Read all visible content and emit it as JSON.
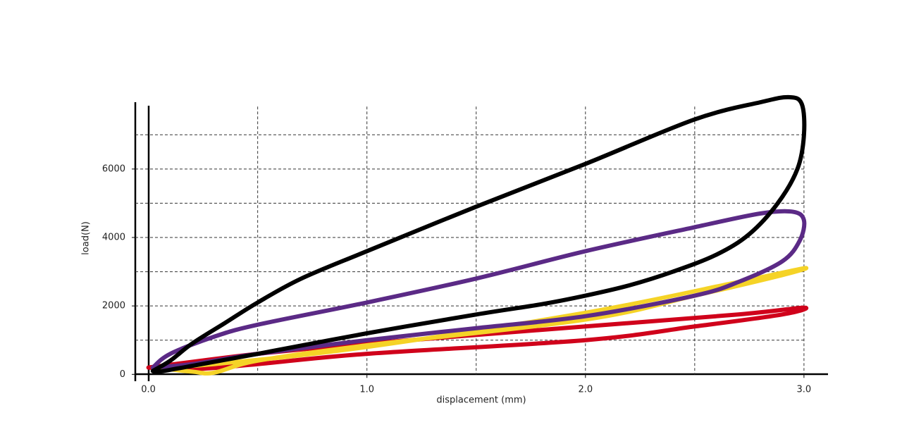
{
  "chart_data": {
    "type": "line",
    "x_label": "displacement (mm)",
    "y_label": "load(N)",
    "xlim": [
      -0.06,
      3.11
    ],
    "ylim": [
      -200,
      8200
    ],
    "xticks": [
      {
        "value": 0,
        "label": "0.0"
      },
      {
        "value": 1,
        "label": "1.0"
      },
      {
        "value": 2,
        "label": "2.0"
      },
      {
        "value": 3,
        "label": "3.0"
      }
    ],
    "yticks": [
      0,
      2000,
      4000,
      6000
    ],
    "xgrid": [
      0.5,
      1,
      1.5,
      2,
      2.5,
      3
    ],
    "ygrid": [
      1000,
      2000,
      3000,
      4000,
      5000,
      6000,
      7000
    ],
    "series": [
      {
        "color": "#d0021b",
        "x": [
          0.0,
          0.5,
          1.0,
          2.0,
          2.7,
          3.0,
          2.9,
          2.5,
          2.0,
          1.0,
          0.5,
          0.2,
          0.0
        ],
        "values": [
          200,
          600,
          900,
          1400,
          1750,
          1950,
          1750,
          1400,
          1000,
          600,
          300,
          150,
          200
        ]
      },
      {
        "color": "#f5d327",
        "x": [
          0.02,
          0.3,
          1.0,
          2.0,
          2.7,
          3.0,
          2.9,
          2.5,
          2.0,
          1.0,
          0.5,
          0.3,
          0.2,
          0.02
        ],
        "values": [
          200,
          300,
          800,
          1800,
          2700,
          3100,
          2900,
          2300,
          1600,
          850,
          400,
          50,
          80,
          200
        ]
      },
      {
        "color": "#5b2a86",
        "x": [
          0.02,
          0.1,
          0.3,
          0.5,
          1.0,
          1.5,
          2.0,
          2.5,
          2.8,
          2.95,
          3.0,
          2.98,
          2.9,
          2.7,
          2.5,
          2.0,
          1.5,
          1.0,
          0.5,
          0.2,
          0.02
        ],
        "values": [
          200,
          600,
          1100,
          1450,
          2100,
          2800,
          3600,
          4300,
          4700,
          4750,
          4500,
          3900,
          3300,
          2700,
          2300,
          1700,
          1350,
          1000,
          600,
          300,
          200
        ]
      },
      {
        "color": "#000000",
        "x": [
          0.02,
          0.1,
          0.2,
          0.35,
          0.5,
          0.7,
          1.0,
          1.5,
          2.0,
          2.5,
          2.8,
          2.93,
          2.99,
          3.0,
          2.97,
          2.88,
          2.75,
          2.6,
          2.4,
          2.2,
          2.0,
          1.8,
          1.5,
          1.0,
          0.5,
          0.2,
          0.05,
          0.02
        ],
        "values": [
          100,
          400,
          900,
          1500,
          2100,
          2800,
          3600,
          4900,
          6150,
          7450,
          7950,
          8100,
          7900,
          7000,
          6000,
          5000,
          4100,
          3500,
          3000,
          2600,
          2300,
          2050,
          1750,
          1200,
          600,
          250,
          80,
          100
        ]
      }
    ]
  }
}
